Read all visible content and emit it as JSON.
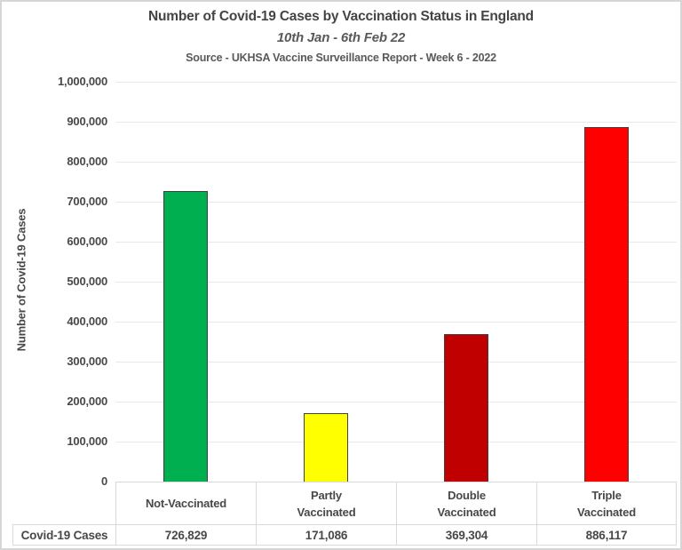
{
  "chart_data": {
    "type": "bar",
    "title": "Number of Covid-19 Cases by Vaccination Status in England",
    "subtitle": "10th Jan - 6th Feb 22",
    "source": "Source - UKHSA Vaccine Surveillance Report - Week 6 - 2022",
    "ylabel": "Number of Covid-19 Cases",
    "xlabel": "",
    "categories": [
      "Not-Vaccinated",
      "Partly Vaccinated",
      "Double Vaccinated",
      "Triple Vaccinated"
    ],
    "category_lines": [
      [
        "Not-Vaccinated"
      ],
      [
        "Partly",
        "Vaccinated"
      ],
      [
        "Double",
        "Vaccinated"
      ],
      [
        "Triple",
        "Vaccinated"
      ]
    ],
    "values": [
      726829,
      171086,
      369304,
      886117
    ],
    "value_labels": [
      "726,829",
      "171,086",
      "369,304",
      "886,117"
    ],
    "bar_colors": [
      "#00B050",
      "#FFFF00",
      "#C00000",
      "#FF0000"
    ],
    "bar_border_color": "#404040",
    "table_row_label": "Covid-19 Cases",
    "ylim": [
      0,
      1000000
    ],
    "ytick_values": [
      0,
      100000,
      200000,
      300000,
      400000,
      500000,
      600000,
      700000,
      800000,
      900000,
      1000000
    ],
    "ytick_labels": [
      "0",
      "100,000",
      "200,000",
      "300,000",
      "400,000",
      "500,000",
      "600,000",
      "700,000",
      "800,000",
      "900,000",
      "1,000,000"
    ],
    "grid": true,
    "legend": "none",
    "text_color": "#484848",
    "grid_color": "#E9E9E9",
    "table_border_color": "#D9D9D9"
  }
}
